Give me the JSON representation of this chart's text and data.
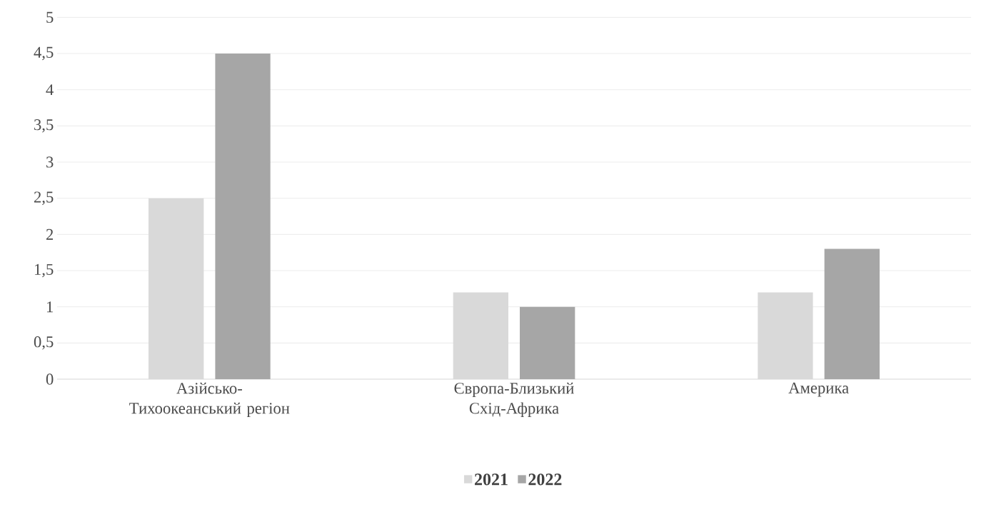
{
  "chart_data": {
    "type": "bar",
    "categories": [
      "Азійсько-Тихоокеанський регіон",
      "Європа-Близький Схід-Африка",
      "Америка"
    ],
    "series": [
      {
        "name": "2021",
        "color": "#d9d9d9",
        "values": [
          2.5,
          1.2,
          1.2
        ]
      },
      {
        "name": "2022",
        "color": "#a6a6a6",
        "values": [
          4.5,
          1.0,
          1.8
        ]
      }
    ],
    "ylim": [
      0,
      5
    ],
    "yticks": [
      0,
      {
        "value": 0.5,
        "label": "0,5"
      },
      1,
      {
        "value": 1.5,
        "label": "1,5"
      },
      2,
      {
        "value": 2.5,
        "label": "2,5"
      },
      3,
      {
        "value": 3.5,
        "label": "3,5"
      },
      4,
      {
        "value": 4.5,
        "label": "4,5"
      },
      5
    ],
    "grid": "y",
    "legend": "bottom"
  }
}
